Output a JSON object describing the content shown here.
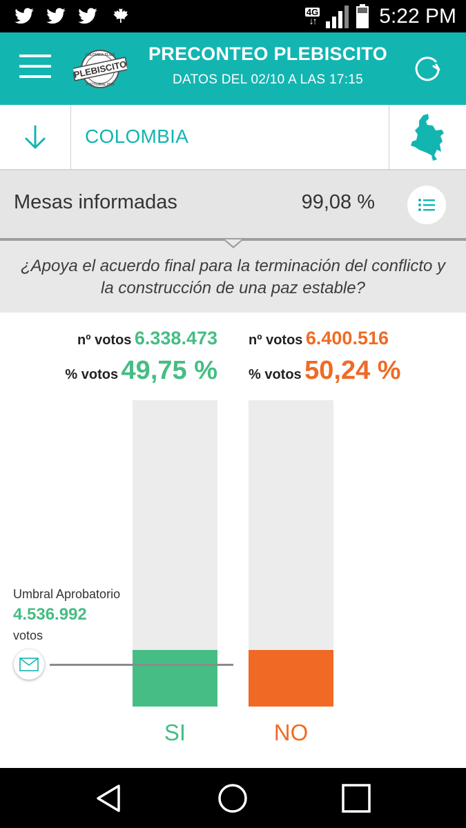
{
  "status_bar": {
    "notification_icons": [
      "twitter-icon",
      "twitter-icon",
      "twitter-icon",
      "maple-leaf-icon"
    ],
    "network_type": "4G",
    "time": "5:22 PM"
  },
  "header": {
    "title": "PRECONTEO PLEBISCITO",
    "subtitle": "DATOS DEL 02/10 A LAS 17:15",
    "logo_text": "PLEBISCITO",
    "logo_ring_top": "COLOMBIA ELIGE",
    "logo_ring_bottom": "2 OCTUBRE 2016",
    "background_color": "#13b5b1"
  },
  "region": {
    "name": "COLOMBIA"
  },
  "mesas": {
    "label": "Mesas informadas",
    "value": "99,08 %"
  },
  "question": {
    "text": "¿Apoya el acuerdo final para la terminación del conflicto y la construcción de una paz estable?"
  },
  "results": {
    "votes_label": "nº votos",
    "percent_label": "% votos",
    "si": {
      "label": "SI",
      "votes": "6.338.473",
      "percent": "49,75 %",
      "color": "#46bd84",
      "bar_fraction": 0.1848
    },
    "no": {
      "label": "NO",
      "votes": "6.400.516",
      "percent": "50,24 %",
      "color": "#f06a25",
      "bar_fraction": 0.1848
    }
  },
  "threshold": {
    "label": "Umbral Aprobatorio",
    "value": "4.536.992",
    "unit": "votos"
  },
  "nav_bar": {
    "buttons": [
      "back-icon",
      "home-icon",
      "recent-apps-icon"
    ]
  }
}
